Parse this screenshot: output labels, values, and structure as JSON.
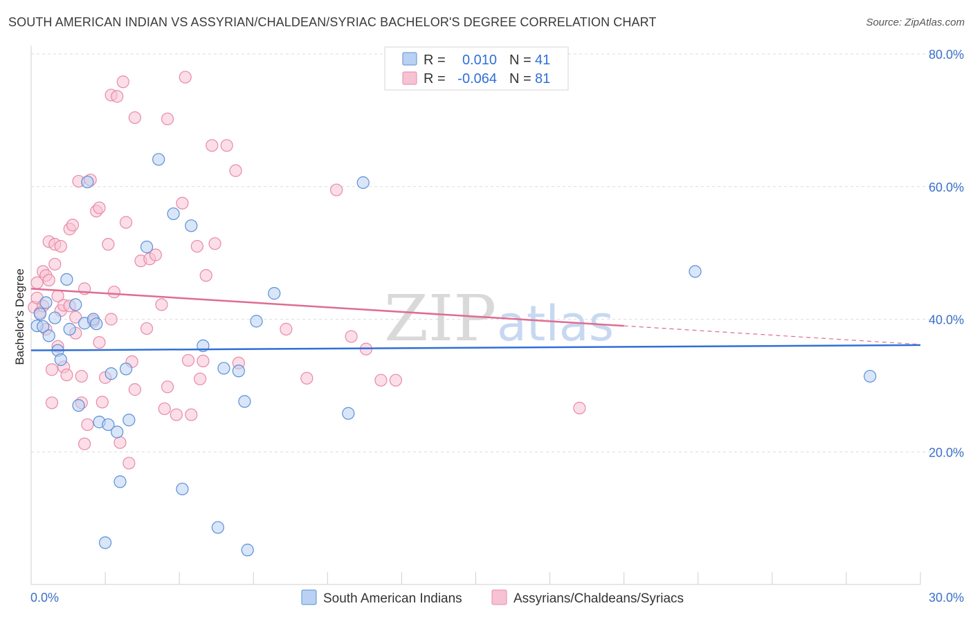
{
  "title": "SOUTH AMERICAN INDIAN VS ASSYRIAN/CHALDEAN/SYRIAC BACHELOR'S DEGREE CORRELATION CHART",
  "source": "Source: ZipAtlas.com",
  "watermark": {
    "zip": "ZIP",
    "atlas": "atlas"
  },
  "colors": {
    "blue_fill": "#b9d1f3",
    "blue_stroke": "#5a8ed8",
    "blue_line": "#2f6fd6",
    "pink_fill": "#f7c2d3",
    "pink_stroke": "#e889a6",
    "pink_line": "#e06b93",
    "axis_text": "#3a6fc9",
    "grid": "#dcdcdc"
  },
  "legend": {
    "blue": {
      "r_label": "R =",
      "r_value": "0.010",
      "n_label": "N =",
      "n_value": "41"
    },
    "pink": {
      "r_label": "R =",
      "r_value": "-0.064",
      "n_label": "N =",
      "n_value": "81"
    }
  },
  "chart_data": {
    "type": "scatter",
    "title": "SOUTH AMERICAN INDIAN VS ASSYRIAN/CHALDEAN/SYRIAC BACHELOR'S DEGREE CORRELATION CHART",
    "xlabel": "",
    "ylabel": "Bachelor's Degree",
    "xlim": [
      0,
      30
    ],
    "ylim": [
      0,
      80
    ],
    "x_tick_labels": [
      "0.0%",
      "30.0%"
    ],
    "y_ticks": [
      20,
      40,
      60,
      80
    ],
    "y_tick_labels": [
      "20.0%",
      "40.0%",
      "60.0%",
      "80.0%"
    ],
    "grid": true,
    "legend_position": "top-center",
    "series": [
      {
        "name": "South American Indians",
        "color": "blue",
        "trend": {
          "x": [
            0,
            30
          ],
          "y": [
            35.3,
            36.1
          ]
        },
        "points": [
          [
            0.2,
            39.0
          ],
          [
            0.3,
            40.8
          ],
          [
            0.4,
            38.9
          ],
          [
            0.5,
            42.5
          ],
          [
            0.6,
            37.5
          ],
          [
            0.8,
            40.2
          ],
          [
            0.9,
            35.3
          ],
          [
            1.0,
            33.9
          ],
          [
            1.2,
            46.0
          ],
          [
            1.3,
            38.5
          ],
          [
            1.5,
            42.2
          ],
          [
            1.6,
            27.0
          ],
          [
            1.8,
            39.4
          ],
          [
            1.9,
            60.7
          ],
          [
            2.1,
            40.0
          ],
          [
            2.2,
            39.3
          ],
          [
            2.3,
            24.5
          ],
          [
            2.5,
            6.3
          ],
          [
            2.6,
            24.1
          ],
          [
            2.7,
            31.8
          ],
          [
            2.9,
            23.0
          ],
          [
            3.0,
            15.5
          ],
          [
            3.2,
            32.5
          ],
          [
            3.3,
            24.8
          ],
          [
            3.9,
            50.9
          ],
          [
            4.3,
            64.1
          ],
          [
            4.8,
            55.9
          ],
          [
            5.1,
            14.4
          ],
          [
            5.4,
            54.1
          ],
          [
            5.8,
            36.0
          ],
          [
            6.3,
            8.6
          ],
          [
            6.5,
            32.6
          ],
          [
            7.0,
            32.2
          ],
          [
            7.2,
            27.6
          ],
          [
            7.3,
            5.2
          ],
          [
            7.6,
            39.7
          ],
          [
            8.2,
            43.9
          ],
          [
            10.7,
            25.8
          ],
          [
            11.2,
            60.6
          ],
          [
            22.4,
            47.2
          ],
          [
            28.3,
            31.4
          ]
        ]
      },
      {
        "name": "Assyrians/Chaldeans/Syriacs",
        "color": "pink",
        "trend": {
          "x": [
            0,
            20
          ],
          "y": [
            44.6,
            39.0
          ]
        },
        "trend_dashed": {
          "x": [
            20,
            30
          ],
          "y": [
            39.0,
            36.2
          ]
        },
        "points": [
          [
            0.1,
            41.8
          ],
          [
            0.2,
            45.5
          ],
          [
            0.2,
            43.2
          ],
          [
            0.3,
            41.0
          ],
          [
            0.4,
            47.2
          ],
          [
            0.4,
            42.0
          ],
          [
            0.5,
            46.6
          ],
          [
            0.5,
            38.5
          ],
          [
            0.6,
            45.9
          ],
          [
            0.6,
            51.7
          ],
          [
            0.7,
            27.4
          ],
          [
            0.7,
            32.4
          ],
          [
            0.8,
            51.3
          ],
          [
            0.8,
            48.3
          ],
          [
            0.9,
            43.5
          ],
          [
            0.9,
            35.9
          ],
          [
            1.0,
            51.0
          ],
          [
            1.0,
            41.3
          ],
          [
            1.1,
            42.1
          ],
          [
            1.1,
            32.8
          ],
          [
            1.2,
            31.6
          ],
          [
            1.3,
            42.0
          ],
          [
            1.3,
            53.6
          ],
          [
            1.4,
            54.2
          ],
          [
            1.5,
            40.3
          ],
          [
            1.5,
            37.9
          ],
          [
            1.6,
            60.8
          ],
          [
            1.7,
            31.4
          ],
          [
            1.7,
            27.4
          ],
          [
            1.8,
            21.2
          ],
          [
            1.8,
            44.6
          ],
          [
            1.9,
            24.1
          ],
          [
            2.0,
            61.0
          ],
          [
            2.1,
            39.7
          ],
          [
            2.2,
            56.3
          ],
          [
            2.3,
            56.8
          ],
          [
            2.3,
            36.5
          ],
          [
            2.4,
            27.5
          ],
          [
            2.5,
            31.2
          ],
          [
            2.6,
            51.3
          ],
          [
            2.7,
            40.0
          ],
          [
            2.7,
            73.8
          ],
          [
            2.8,
            44.1
          ],
          [
            2.9,
            73.6
          ],
          [
            3.0,
            21.4
          ],
          [
            3.1,
            75.8
          ],
          [
            3.2,
            54.6
          ],
          [
            3.3,
            18.3
          ],
          [
            3.4,
            33.6
          ],
          [
            3.5,
            29.4
          ],
          [
            3.5,
            70.4
          ],
          [
            3.7,
            48.8
          ],
          [
            3.9,
            38.6
          ],
          [
            4.0,
            49.1
          ],
          [
            4.2,
            49.7
          ],
          [
            4.4,
            42.2
          ],
          [
            4.5,
            26.5
          ],
          [
            4.6,
            29.8
          ],
          [
            4.6,
            70.2
          ],
          [
            4.9,
            25.6
          ],
          [
            5.1,
            57.5
          ],
          [
            5.2,
            76.5
          ],
          [
            5.3,
            33.8
          ],
          [
            5.4,
            25.6
          ],
          [
            5.6,
            51.0
          ],
          [
            5.7,
            31.0
          ],
          [
            5.8,
            33.7
          ],
          [
            5.9,
            46.6
          ],
          [
            6.1,
            66.2
          ],
          [
            6.2,
            51.4
          ],
          [
            6.6,
            66.2
          ],
          [
            6.9,
            62.4
          ],
          [
            7.0,
            33.4
          ],
          [
            8.6,
            38.5
          ],
          [
            9.3,
            31.1
          ],
          [
            10.3,
            59.5
          ],
          [
            10.8,
            37.4
          ],
          [
            11.3,
            35.5
          ],
          [
            11.8,
            30.8
          ],
          [
            12.3,
            30.8
          ],
          [
            18.5,
            26.6
          ]
        ]
      }
    ]
  }
}
